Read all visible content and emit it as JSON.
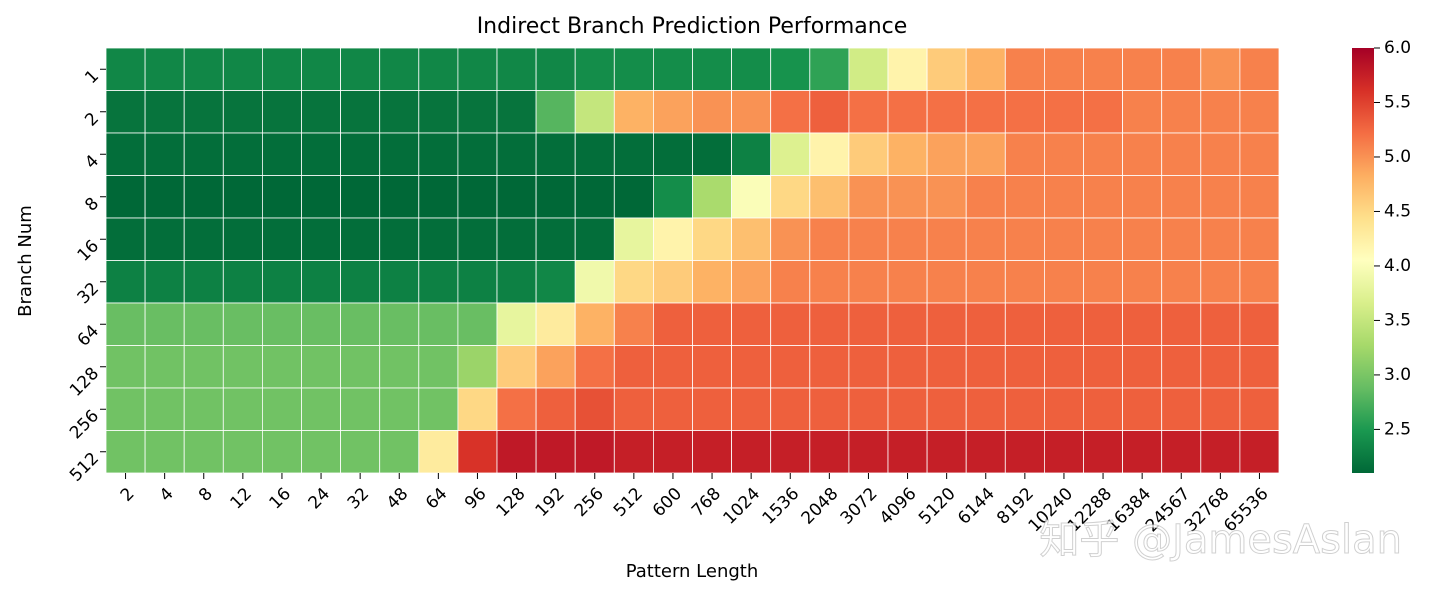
{
  "chart_data": {
    "type": "heatmap",
    "title": "Indirect Branch Prediction Performance",
    "x_label": "Pattern Length",
    "y_label": "Branch Num",
    "categories": [
      "2",
      "4",
      "8",
      "12",
      "16",
      "24",
      "32",
      "48",
      "64",
      "96",
      "128",
      "192",
      "256",
      "512",
      "600",
      "768",
      "1024",
      "1536",
      "2048",
      "3072",
      "4096",
      "5120",
      "6144",
      "8192",
      "10240",
      "12288",
      "16384",
      "24567",
      "32768",
      "65536"
    ],
    "rows": [
      "1",
      "2",
      "4",
      "8",
      "16",
      "32",
      "64",
      "128",
      "256",
      "512"
    ],
    "values": [
      [
        2.35,
        2.35,
        2.35,
        2.35,
        2.35,
        2.35,
        2.35,
        2.35,
        2.35,
        2.35,
        2.35,
        2.35,
        2.4,
        2.4,
        2.4,
        2.4,
        2.4,
        2.45,
        2.6,
        3.6,
        4.2,
        4.6,
        4.8,
        5.1,
        5.1,
        5.1,
        5.1,
        5.1,
        5.0,
        5.1
      ],
      [
        2.2,
        2.2,
        2.2,
        2.2,
        2.2,
        2.2,
        2.2,
        2.2,
        2.2,
        2.2,
        2.2,
        2.8,
        3.5,
        4.8,
        4.9,
        5.0,
        5.0,
        5.2,
        5.3,
        5.2,
        5.2,
        5.2,
        5.2,
        5.2,
        5.2,
        5.2,
        5.1,
        5.1,
        5.1,
        5.1
      ],
      [
        2.15,
        2.15,
        2.15,
        2.15,
        2.15,
        2.15,
        2.15,
        2.15,
        2.15,
        2.15,
        2.15,
        2.15,
        2.15,
        2.15,
        2.15,
        2.15,
        2.3,
        3.7,
        4.2,
        4.6,
        4.8,
        4.9,
        4.9,
        5.1,
        5.1,
        5.1,
        5.1,
        5.1,
        5.1,
        5.1
      ],
      [
        2.1,
        2.1,
        2.1,
        2.1,
        2.1,
        2.1,
        2.1,
        2.1,
        2.1,
        2.1,
        2.1,
        2.1,
        2.1,
        2.1,
        2.4,
        3.3,
        4.0,
        4.5,
        4.7,
        5.0,
        5.0,
        5.0,
        5.1,
        5.1,
        5.1,
        5.1,
        5.1,
        5.1,
        5.1,
        5.1
      ],
      [
        2.15,
        2.15,
        2.15,
        2.15,
        2.15,
        2.15,
        2.15,
        2.15,
        2.15,
        2.15,
        2.15,
        2.15,
        2.15,
        3.8,
        4.2,
        4.5,
        4.7,
        5.0,
        5.1,
        5.1,
        5.1,
        5.1,
        5.1,
        5.1,
        5.1,
        5.1,
        5.1,
        5.1,
        5.1,
        5.1
      ],
      [
        2.3,
        2.3,
        2.3,
        2.3,
        2.3,
        2.3,
        2.3,
        2.3,
        2.3,
        2.3,
        2.3,
        2.35,
        3.9,
        4.5,
        4.6,
        4.8,
        4.9,
        5.1,
        5.1,
        5.1,
        5.1,
        5.1,
        5.1,
        5.1,
        5.1,
        5.1,
        5.1,
        5.1,
        5.1,
        5.1
      ],
      [
        2.9,
        2.9,
        2.9,
        2.9,
        2.9,
        2.9,
        2.9,
        2.9,
        2.9,
        2.9,
        3.8,
        4.3,
        4.8,
        5.1,
        5.3,
        5.3,
        5.3,
        5.3,
        5.3,
        5.3,
        5.3,
        5.3,
        5.3,
        5.3,
        5.3,
        5.3,
        5.3,
        5.3,
        5.3,
        5.3
      ],
      [
        2.95,
        2.95,
        2.95,
        2.95,
        2.95,
        2.95,
        2.95,
        2.95,
        2.95,
        3.2,
        4.6,
        4.9,
        5.2,
        5.3,
        5.3,
        5.3,
        5.3,
        5.3,
        5.3,
        5.3,
        5.3,
        5.3,
        5.3,
        5.3,
        5.3,
        5.3,
        5.3,
        5.3,
        5.3,
        5.3
      ],
      [
        2.95,
        2.95,
        2.95,
        2.95,
        2.95,
        2.95,
        2.95,
        2.95,
        2.95,
        4.5,
        5.2,
        5.3,
        5.4,
        5.3,
        5.3,
        5.3,
        5.3,
        5.3,
        5.3,
        5.3,
        5.3,
        5.3,
        5.3,
        5.3,
        5.3,
        5.3,
        5.3,
        5.3,
        5.3,
        5.3
      ],
      [
        2.95,
        2.95,
        2.95,
        2.95,
        2.95,
        2.95,
        2.95,
        2.95,
        4.3,
        5.6,
        5.8,
        5.8,
        5.8,
        5.75,
        5.75,
        5.75,
        5.75,
        5.75,
        5.75,
        5.75,
        5.75,
        5.75,
        5.75,
        5.75,
        5.75,
        5.75,
        5.75,
        5.75,
        5.75,
        5.75
      ]
    ],
    "colormap": [
      "#006837",
      "#1a9850",
      "#66bd63",
      "#a6d96a",
      "#d9ef8b",
      "#ffffbf",
      "#fee08b",
      "#fdae61",
      "#f46d43",
      "#d73027",
      "#a50026"
    ],
    "clim": [
      2.1,
      6.0
    ],
    "cticks": [
      {
        "value": 2.5,
        "label": "2.5"
      },
      {
        "value": 3,
        "label": "3.0"
      },
      {
        "value": 3.5,
        "label": "3.5"
      },
      {
        "value": 4,
        "label": "4.0"
      },
      {
        "value": 4.5,
        "label": "4.5"
      },
      {
        "value": 5,
        "label": "5.0"
      },
      {
        "value": 5.5,
        "label": "5.5"
      },
      {
        "value": 6,
        "label": "6.0"
      }
    ],
    "watermark": "知乎 @JamesAslan"
  }
}
